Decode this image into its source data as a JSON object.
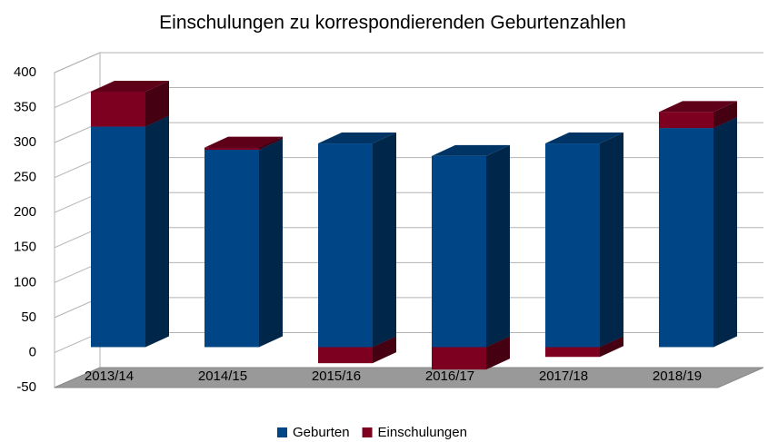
{
  "chart_data": {
    "type": "bar3d",
    "title": "Einschulungen zu korrespondierenden Geburtenzahlen",
    "categories": [
      "2013/14",
      "2014/15",
      "2015/16",
      "2016/17",
      "2017/18",
      "2018/19"
    ],
    "series": [
      {
        "name": "Geburten",
        "color": "#004586",
        "values": [
          315,
          282,
          291,
          273,
          291,
          313
        ]
      },
      {
        "name": "Einschulungen",
        "color": "#7e0021",
        "values": [
          50,
          3,
          -23,
          -32,
          -14,
          23
        ]
      }
    ],
    "ylim": [
      -50,
      400
    ],
    "yticks": [
      -50,
      0,
      50,
      100,
      150,
      200,
      250,
      300,
      350,
      400
    ],
    "grid": true,
    "stacked": true,
    "legend": "bottom"
  }
}
